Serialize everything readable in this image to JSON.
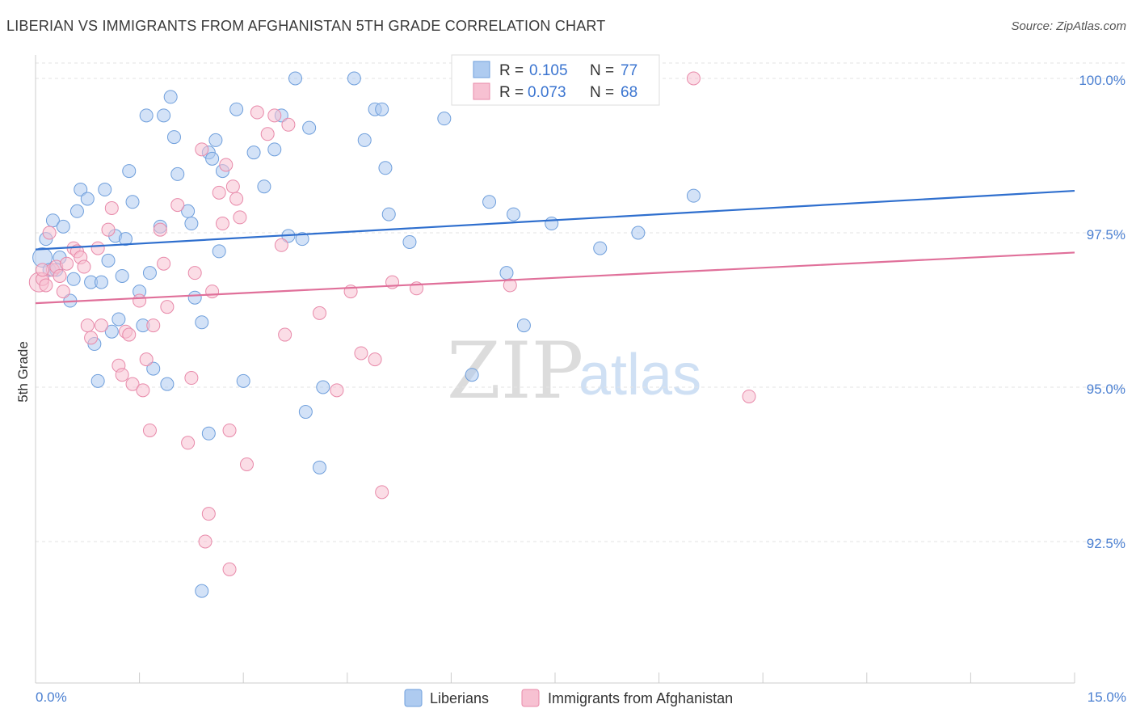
{
  "title": "LIBERIAN VS IMMIGRANTS FROM AFGHANISTAN 5TH GRADE CORRELATION CHART",
  "source": "Source: ZipAtlas.com",
  "watermark": {
    "zip": "ZIP",
    "atlas": "atlas"
  },
  "legend": {
    "r_label": "R =",
    "n_label": "N =",
    "rows": [
      {
        "r": "0.105",
        "n": "77"
      },
      {
        "r": "0.073",
        "n": "68"
      }
    ]
  },
  "bottom_legend": [
    "Liberians",
    "Immigrants from Afghanistan"
  ],
  "colors": {
    "blue_fill": "#aecbf0",
    "blue_stroke": "#6f9fdc",
    "blue_line": "#2f6fce",
    "pink_fill": "#f7c1d2",
    "pink_stroke": "#e88aaa",
    "pink_line": "#e0709a",
    "axis_text": "#4a7fd1",
    "grid": "#e3e3e3"
  },
  "chart_data": {
    "type": "scatter",
    "title": "LIBERIAN VS IMMIGRANTS FROM AFGHANISTAN 5TH GRADE CORRELATION CHART",
    "xlabel": "",
    "ylabel": "5th Grade",
    "xlim": [
      0.0,
      15.0
    ],
    "ylim": [
      90.0,
      100.6
    ],
    "x_tick_labels": [
      "0.0%",
      "15.0%"
    ],
    "y_ticks": [
      92.5,
      95.0,
      97.5,
      100.0
    ],
    "y_tick_labels": [
      "92.5%",
      "95.0%",
      "97.5%",
      "100.0%"
    ],
    "grid": true,
    "series": [
      {
        "name": "Liberians",
        "color": "blue",
        "r": 0.105,
        "n": 77,
        "trend": [
          [
            0.0,
            97.23
          ],
          [
            15.0,
            98.18
          ]
        ],
        "points": [
          [
            0.1,
            97.1
          ],
          [
            0.15,
            97.4
          ],
          [
            0.2,
            96.9
          ],
          [
            0.25,
            97.7
          ],
          [
            0.3,
            96.9
          ],
          [
            0.35,
            97.1
          ],
          [
            0.4,
            97.6
          ],
          [
            0.5,
            96.4
          ],
          [
            0.55,
            96.75
          ],
          [
            0.6,
            97.85
          ],
          [
            0.65,
            98.2
          ],
          [
            0.75,
            98.05
          ],
          [
            0.8,
            96.7
          ],
          [
            0.85,
            95.7
          ],
          [
            0.9,
            95.1
          ],
          [
            0.95,
            96.7
          ],
          [
            1.0,
            98.2
          ],
          [
            1.05,
            97.05
          ],
          [
            1.1,
            95.9
          ],
          [
            1.15,
            97.45
          ],
          [
            1.2,
            96.1
          ],
          [
            1.25,
            96.8
          ],
          [
            1.3,
            97.4
          ],
          [
            1.35,
            98.5
          ],
          [
            1.4,
            98.0
          ],
          [
            1.5,
            96.55
          ],
          [
            1.55,
            96.0
          ],
          [
            1.6,
            99.4
          ],
          [
            1.65,
            96.85
          ],
          [
            1.7,
            95.3
          ],
          [
            1.8,
            97.6
          ],
          [
            1.85,
            99.4
          ],
          [
            1.9,
            95.05
          ],
          [
            1.95,
            99.7
          ],
          [
            2.0,
            99.05
          ],
          [
            2.05,
            98.45
          ],
          [
            2.2,
            97.85
          ],
          [
            2.25,
            97.65
          ],
          [
            2.3,
            96.45
          ],
          [
            2.4,
            96.05
          ],
          [
            2.5,
            98.8
          ],
          [
            2.55,
            98.7
          ],
          [
            2.6,
            99.0
          ],
          [
            2.65,
            97.2
          ],
          [
            2.7,
            98.5
          ],
          [
            2.9,
            99.5
          ],
          [
            3.0,
            95.1
          ],
          [
            3.15,
            98.8
          ],
          [
            3.3,
            98.25
          ],
          [
            3.45,
            98.85
          ],
          [
            3.55,
            99.4
          ],
          [
            3.65,
            97.45
          ],
          [
            3.75,
            100.0
          ],
          [
            3.85,
            97.4
          ],
          [
            3.95,
            99.2
          ],
          [
            4.15,
            95.0
          ],
          [
            4.6,
            100.0
          ],
          [
            4.75,
            99.0
          ],
          [
            4.9,
            99.5
          ],
          [
            5.05,
            98.55
          ],
          [
            5.1,
            97.8
          ],
          [
            5.4,
            97.35
          ],
          [
            5.9,
            99.35
          ],
          [
            6.3,
            95.2
          ],
          [
            6.55,
            98.0
          ],
          [
            6.8,
            96.85
          ],
          [
            6.9,
            97.8
          ],
          [
            7.05,
            96.0
          ],
          [
            7.45,
            97.65
          ],
          [
            8.15,
            97.25
          ],
          [
            8.7,
            97.5
          ],
          [
            9.5,
            98.1
          ],
          [
            2.5,
            94.25
          ],
          [
            4.1,
            93.7
          ],
          [
            2.4,
            91.7
          ],
          [
            3.9,
            94.6
          ],
          [
            5.0,
            99.5
          ]
        ]
      },
      {
        "name": "Immigrants from Afghanistan",
        "color": "pink",
        "r": 0.073,
        "n": 68,
        "trend": [
          [
            0.0,
            96.36
          ],
          [
            15.0,
            97.18
          ]
        ],
        "points": [
          [
            0.05,
            96.7
          ],
          [
            0.1,
            96.75
          ],
          [
            0.15,
            96.65
          ],
          [
            0.2,
            97.5
          ],
          [
            0.25,
            96.9
          ],
          [
            0.3,
            96.95
          ],
          [
            0.35,
            96.8
          ],
          [
            0.4,
            96.55
          ],
          [
            0.45,
            97.0
          ],
          [
            0.55,
            97.25
          ],
          [
            0.6,
            97.2
          ],
          [
            0.65,
            97.1
          ],
          [
            0.7,
            96.95
          ],
          [
            0.75,
            96.0
          ],
          [
            0.8,
            95.8
          ],
          [
            0.9,
            97.25
          ],
          [
            0.95,
            96.0
          ],
          [
            1.05,
            97.55
          ],
          [
            1.1,
            97.9
          ],
          [
            1.2,
            95.35
          ],
          [
            1.25,
            95.2
          ],
          [
            1.3,
            95.9
          ],
          [
            1.35,
            95.85
          ],
          [
            1.4,
            95.05
          ],
          [
            1.5,
            96.4
          ],
          [
            1.55,
            94.95
          ],
          [
            1.6,
            95.45
          ],
          [
            1.65,
            94.3
          ],
          [
            1.7,
            96.0
          ],
          [
            1.8,
            97.55
          ],
          [
            1.85,
            97.0
          ],
          [
            1.9,
            96.3
          ],
          [
            2.05,
            97.95
          ],
          [
            2.2,
            94.1
          ],
          [
            2.25,
            95.15
          ],
          [
            2.3,
            96.85
          ],
          [
            2.4,
            98.85
          ],
          [
            2.55,
            96.55
          ],
          [
            2.65,
            98.15
          ],
          [
            2.7,
            97.65
          ],
          [
            2.75,
            98.6
          ],
          [
            2.8,
            94.3
          ],
          [
            2.85,
            98.25
          ],
          [
            2.9,
            98.05
          ],
          [
            2.95,
            97.75
          ],
          [
            3.05,
            93.75
          ],
          [
            3.2,
            99.45
          ],
          [
            3.35,
            99.1
          ],
          [
            3.45,
            99.4
          ],
          [
            3.55,
            97.3
          ],
          [
            3.6,
            95.85
          ],
          [
            3.65,
            99.25
          ],
          [
            4.1,
            96.2
          ],
          [
            4.35,
            94.95
          ],
          [
            4.55,
            96.55
          ],
          [
            4.7,
            95.55
          ],
          [
            4.9,
            95.45
          ],
          [
            5.0,
            93.3
          ],
          [
            5.15,
            96.7
          ],
          [
            5.5,
            96.6
          ],
          [
            6.85,
            96.65
          ],
          [
            9.5,
            100.0
          ],
          [
            10.3,
            94.85
          ],
          [
            2.5,
            92.95
          ],
          [
            2.45,
            92.5
          ],
          [
            2.8,
            92.05
          ],
          [
            7.0,
            100.0
          ],
          [
            0.1,
            96.9
          ]
        ]
      }
    ]
  }
}
